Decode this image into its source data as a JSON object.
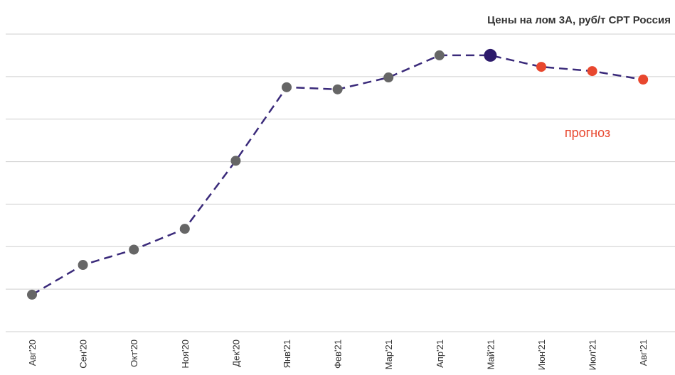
{
  "chart_data": {
    "type": "line",
    "title": "Цены на лом 3А, руб/т CPT Россия",
    "annotation": "прогноз",
    "annotation_color": "#e8472e",
    "categories": [
      "Авг'20",
      "Сен'20",
      "Окт'20",
      "Ноя'20",
      "Дек'20",
      "Янв'21",
      "Фев'21",
      "Мар'21",
      "Апр'21",
      "Май'21",
      "Июн'21",
      "Июл'21",
      "Авг'21"
    ],
    "values": [
      0.87,
      1.57,
      1.93,
      2.42,
      4.02,
      5.75,
      5.7,
      5.98,
      6.5,
      6.5,
      6.23,
      6.13,
      5.93
    ],
    "line_color": "#3a2a7a",
    "point_colors": [
      "#666666",
      "#666666",
      "#666666",
      "#666666",
      "#666666",
      "#666666",
      "#666666",
      "#666666",
      "#666666",
      "#2d1b6b",
      "#e8472e",
      "#e8472e",
      "#e8472e"
    ],
    "ylim": [
      0,
      7
    ],
    "yticks": [
      0,
      1,
      2,
      3,
      4,
      5,
      6,
      7
    ],
    "grid": true
  }
}
